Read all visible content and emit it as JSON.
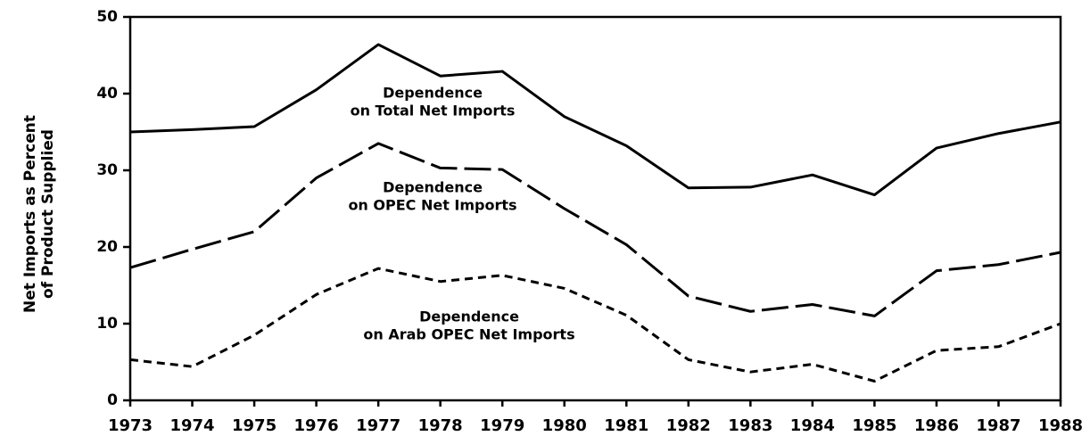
{
  "chart_data": {
    "type": "line",
    "y_label_lines": [
      "Net Imports as Percent",
      "of Product Supplied"
    ],
    "categories": [
      "1973",
      "1974",
      "1975",
      "1976",
      "1977",
      "1978",
      "1979",
      "1980",
      "1981",
      "1982",
      "1983",
      "1984",
      "1985",
      "1986",
      "1987",
      "1988"
    ],
    "series": [
      {
        "color": "#000000",
        "dash": "solid",
        "values": [
          35.0,
          35.3,
          35.7,
          40.5,
          46.4,
          42.3,
          42.9,
          37.0,
          33.2,
          27.7,
          27.8,
          29.4,
          26.8,
          32.9,
          34.8,
          36.3
        ]
      },
      {
        "color": "#000000",
        "dash": "long",
        "values": [
          17.3,
          19.7,
          22.0,
          29.0,
          33.5,
          30.3,
          30.1,
          25.0,
          20.3,
          13.6,
          11.6,
          12.5,
          11.0,
          16.9,
          17.7,
          19.3
        ]
      },
      {
        "color": "#000000",
        "dash": "short",
        "values": [
          5.3,
          4.4,
          8.5,
          13.8,
          17.2,
          15.5,
          16.3,
          14.6,
          11.1,
          5.3,
          3.7,
          4.7,
          2.5,
          6.5,
          7.0,
          10.0
        ]
      }
    ],
    "annotations": [
      {
        "series": 0,
        "lines": [
          "Dependence",
          "on Total Net Imports"
        ]
      },
      {
        "series": 1,
        "lines": [
          "Dependence",
          "on OPEC Net Imports"
        ]
      },
      {
        "series": 2,
        "lines": [
          "Dependence",
          "on Arab OPEC Net Imports"
        ]
      }
    ],
    "ylim": [
      0,
      50
    ],
    "yticks": [
      0,
      10,
      20,
      30,
      40,
      50
    ],
    "grid": false
  }
}
